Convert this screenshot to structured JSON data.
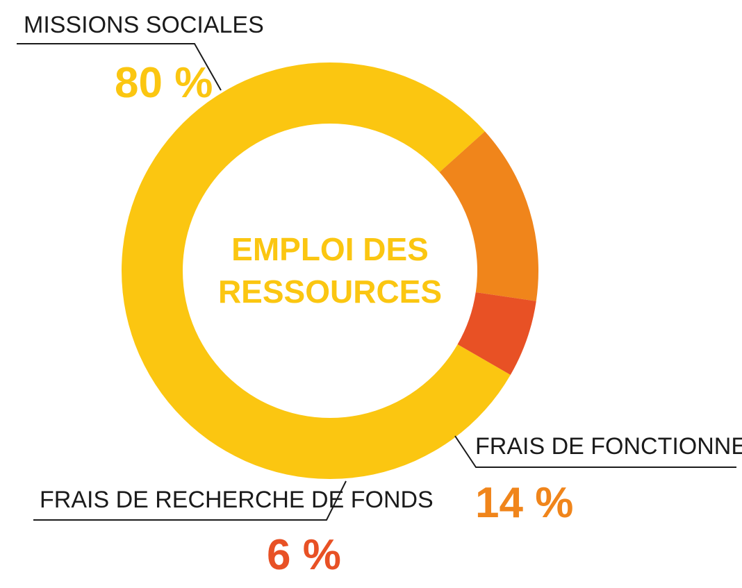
{
  "chart_data": {
    "type": "pie",
    "donut": true,
    "title": "EMPLOI DES RESSOURCES",
    "title_lines": [
      "EMPLOI DES",
      "RESSOURCES"
    ],
    "unit": "%",
    "slices": [
      {
        "label": "MISSIONS SOCIALES",
        "value": 80,
        "value_text": "80 %",
        "color": "#FBC611"
      },
      {
        "label": "FRAIS DE FONCTIONNEMENT",
        "value": 14,
        "value_text": "14 %",
        "color": "#F0851B"
      },
      {
        "label": "FRAIS DE RECHERCHE DE FONDS",
        "value": 6,
        "value_text": "6 %",
        "color": "#E85125"
      }
    ],
    "title_color": "#FBC611",
    "legend": "callout-labels",
    "grid": false
  }
}
